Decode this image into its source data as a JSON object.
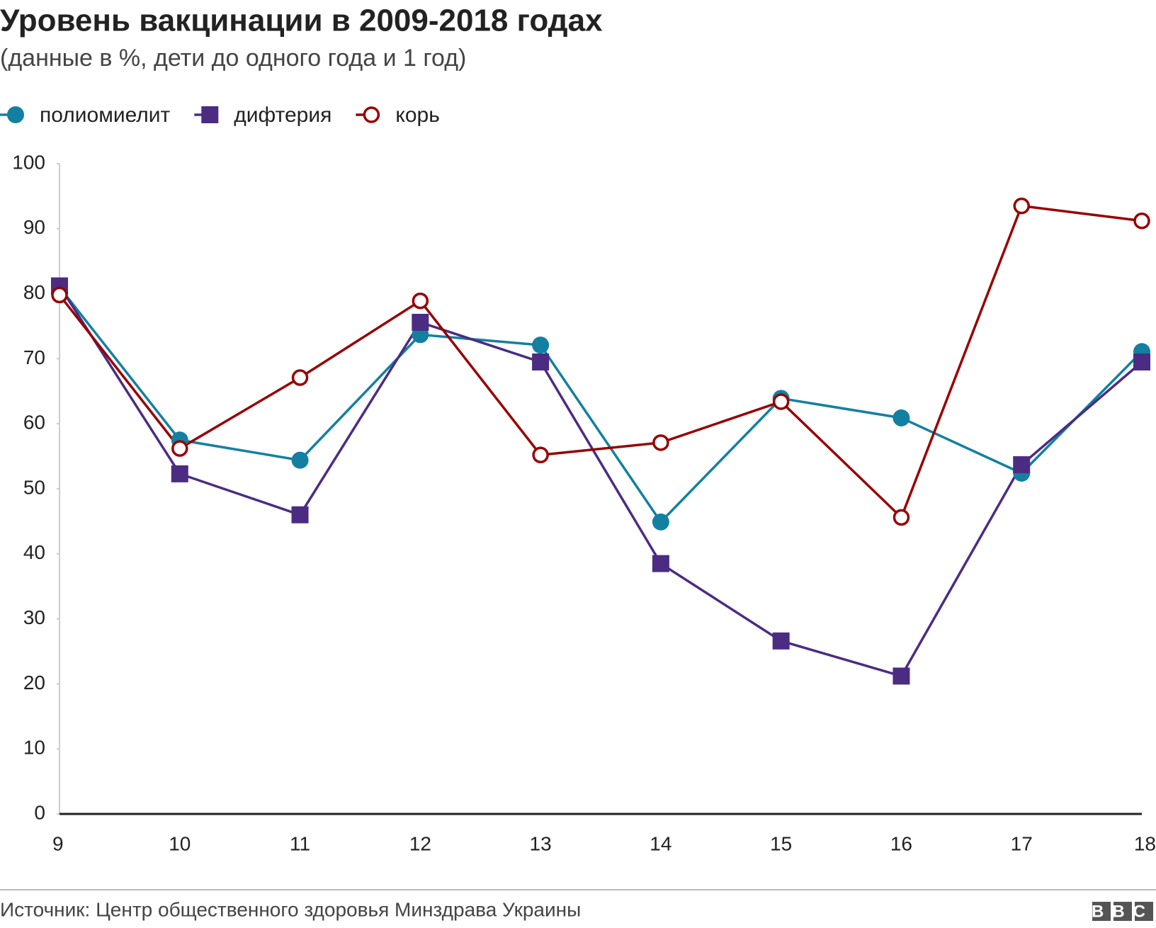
{
  "chart_data": {
    "type": "line",
    "title": "Уровень вакцинации в 2009-2018 годах",
    "subtitle": "(данные в %, дети до одного года и 1 год)",
    "source": "Источник: Центр общественного здоровья Минздрава Украины",
    "logo": "BBC",
    "categories": [
      "9",
      "10",
      "11",
      "12",
      "13",
      "14",
      "15",
      "16",
      "17",
      "18"
    ],
    "series": [
      {
        "name": "полиомиелит",
        "color": "#1380a1",
        "marker": "circle",
        "values": [
          81,
          57.5,
          54.4,
          73.7,
          72.1,
          44.9,
          63.9,
          60.9,
          52.4,
          71.1
        ]
      },
      {
        "name": "дифтерия",
        "color": "#4b2c82",
        "marker": "square",
        "values": [
          81.2,
          52.3,
          46,
          75.6,
          69.5,
          38.5,
          26.6,
          21.2,
          53.7,
          69.5
        ]
      },
      {
        "name": "корь",
        "color": "#990000",
        "marker": "open-circle",
        "values": [
          79.8,
          56.2,
          67.1,
          78.9,
          55.2,
          57.1,
          63.4,
          45.6,
          93.5,
          91.2
        ]
      }
    ],
    "ylim": [
      0,
      100
    ],
    "yticks": [
      0,
      10,
      20,
      30,
      40,
      50,
      60,
      70,
      80,
      90,
      100
    ],
    "legend": "top-left"
  }
}
